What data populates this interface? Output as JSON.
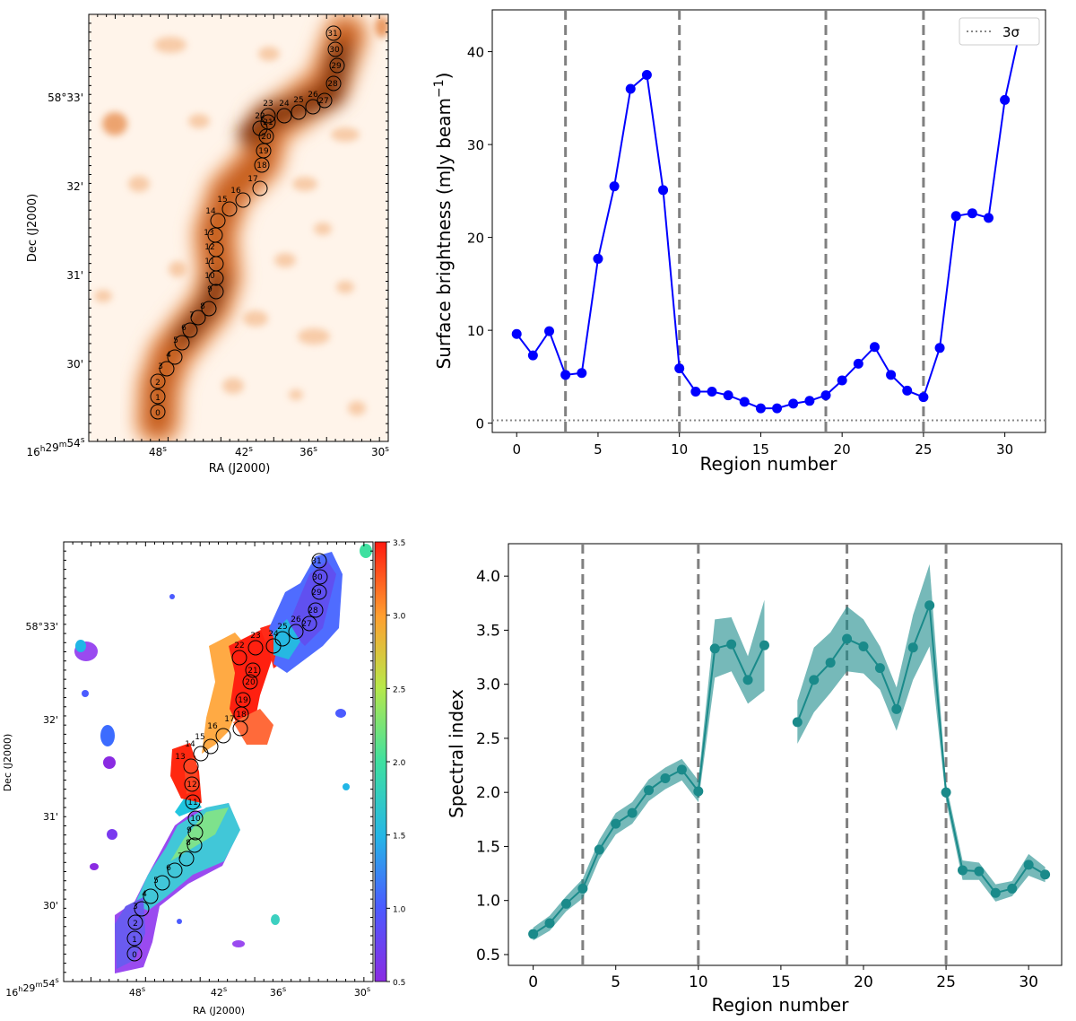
{
  "chart_data": [
    {
      "type": "image",
      "panel": "top-left",
      "description_kind": "radio surface brightness map",
      "xlabel": "RA (J2000)",
      "ylabel": "Dec (J2000)",
      "xtick_labels": [
        {
          "h": "16",
          "hs": "h",
          "m": "29",
          "ms": "m",
          "s": "54",
          "ss": "s"
        },
        {
          "s": "48",
          "ss": "s"
        },
        {
          "s": "42",
          "ss": "s"
        },
        {
          "s": "36",
          "ss": "s"
        },
        {
          "s": "30",
          "ss": "s"
        }
      ],
      "ytick_labels": [
        "30'",
        "31'",
        "32'",
        "58°33'"
      ],
      "region_labels": [
        "0",
        "1",
        "2",
        "3",
        "4",
        "5",
        "6",
        "7",
        "8",
        "9",
        "10",
        "11",
        "12",
        "13",
        "14",
        "15",
        "16",
        "17",
        "18",
        "19",
        "20",
        "21",
        "22",
        "23",
        "24",
        "25",
        "26",
        "27",
        "28",
        "29",
        "30",
        "31"
      ]
    },
    {
      "type": "line",
      "panel": "top-right",
      "xlabel": "Region number",
      "ylabel": "Surface brightness (mJy beam",
      "ylabel_sup": "−1",
      "ylabel_close": ")",
      "xlim": [
        -1.5,
        32.5
      ],
      "ylim": [
        -1,
        44.5
      ],
      "xticks": [
        0,
        5,
        10,
        15,
        20,
        25,
        30
      ],
      "yticks": [
        0,
        10,
        20,
        30,
        40
      ],
      "vlines": [
        3,
        10,
        19,
        25
      ],
      "hline_3sigma": 0.3,
      "legend": {
        "label": "3σ",
        "location": "top-right"
      },
      "series": [
        {
          "name": "surface brightness",
          "color": "#0000ff",
          "x": [
            0,
            1,
            2,
            3,
            4,
            5,
            6,
            7,
            8,
            9,
            10,
            11,
            12,
            13,
            14,
            15,
            16,
            17,
            18,
            19,
            20,
            21,
            22,
            23,
            24,
            25,
            26,
            27,
            28,
            29,
            30,
            31
          ],
          "values": [
            9.6,
            7.3,
            9.9,
            5.2,
            5.4,
            17.7,
            25.5,
            36.0,
            37.5,
            25.1,
            5.9,
            3.4,
            3.4,
            3.0,
            2.3,
            1.6,
            1.6,
            2.1,
            2.4,
            3.0,
            4.6,
            6.4,
            8.2,
            5.2,
            3.5,
            2.8,
            8.1,
            22.3,
            22.6,
            22.1,
            34.8,
            42.8
          ]
        }
      ]
    },
    {
      "type": "image",
      "panel": "bottom-left",
      "description_kind": "spectral index map with colorbar",
      "xlabel": "RA (J2000)",
      "ylabel": "Dec (J2000)",
      "xtick_labels": [
        {
          "h": "16",
          "hs": "h",
          "m": "29",
          "ms": "m",
          "s": "54",
          "ss": "s"
        },
        {
          "s": "48",
          "ss": "s"
        },
        {
          "s": "42",
          "ss": "s"
        },
        {
          "s": "36",
          "ss": "s"
        },
        {
          "s": "30",
          "ss": "s"
        }
      ],
      "ytick_labels": [
        "30'",
        "31'",
        "32'",
        "58°33'"
      ],
      "colorbar": {
        "range": [
          0.5,
          3.5
        ],
        "ticks": [
          "3.5",
          "3.0",
          "2.5",
          "2.0",
          "1.5",
          "1.0",
          "0.5"
        ]
      },
      "region_labels": [
        "0",
        "1",
        "2",
        "3",
        "4",
        "5",
        "6",
        "7",
        "8",
        "9",
        "10",
        "11",
        "12",
        "13",
        "14",
        "15",
        "16",
        "17",
        "18",
        "19",
        "20",
        "21",
        "22",
        "23",
        "24",
        "25",
        "26",
        "27",
        "28",
        "29",
        "30",
        "31"
      ]
    },
    {
      "type": "line",
      "panel": "bottom-right",
      "xlabel": "Region number",
      "ylabel": "Spectral index",
      "xlim": [
        -1.5,
        32.0
      ],
      "ylim": [
        0.4,
        4.3
      ],
      "xticks": [
        0,
        5,
        10,
        15,
        20,
        25,
        30
      ],
      "yticks": [
        0.5,
        1.0,
        1.5,
        2.0,
        2.5,
        3.0,
        3.5,
        4.0
      ],
      "ytick_labels": [
        "0.5",
        "1.0",
        "1.5",
        "2.0",
        "2.5",
        "3.0",
        "3.5",
        "4.0"
      ],
      "vlines": [
        3,
        10,
        19,
        25
      ],
      "series": [
        {
          "name": "spectral index",
          "color": "#1a8a8a",
          "segments": [
            {
              "x": [
                0,
                1,
                2,
                3,
                4,
                5,
                6,
                7,
                8,
                9,
                10,
                11,
                12,
                13,
                14
              ],
              "values": [
                0.69,
                0.79,
                0.97,
                1.11,
                1.47,
                1.71,
                1.81,
                2.02,
                2.13,
                2.21,
                2.01,
                3.33,
                3.37,
                3.04,
                3.36
              ],
              "err": [
                0.06,
                0.07,
                0.07,
                0.09,
                0.09,
                0.1,
                0.1,
                0.1,
                0.1,
                0.1,
                0.1,
                0.27,
                0.25,
                0.22,
                0.42
              ]
            },
            {
              "x": [
                16,
                17,
                18,
                19,
                20,
                21,
                22,
                23,
                24,
                25,
                26,
                27,
                28,
                29,
                30,
                31
              ],
              "values": [
                2.65,
                3.04,
                3.2,
                3.42,
                3.35,
                3.15,
                2.77,
                3.34,
                3.73,
                2.0,
                1.28,
                1.27,
                1.07,
                1.11,
                1.33,
                1.24
              ],
              "err": [
                0.2,
                0.3,
                0.28,
                0.3,
                0.25,
                0.2,
                0.2,
                0.3,
                0.38,
                0.08,
                0.09,
                0.08,
                0.08,
                0.07,
                0.1,
                0.07
              ]
            }
          ]
        }
      ]
    }
  ]
}
